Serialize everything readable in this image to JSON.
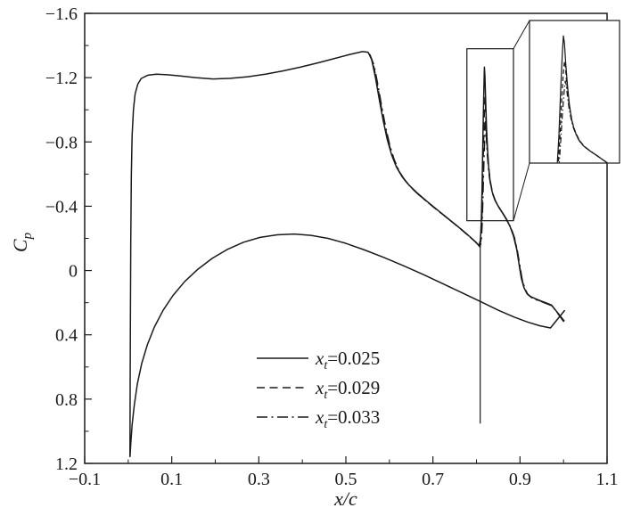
{
  "figure": {
    "background": "#ffffff",
    "ink": "#1a1a1a"
  },
  "chart_data": {
    "type": "line",
    "title": "",
    "xlabel": "x/c",
    "ylabel": "Cp",
    "ylabel_parts": {
      "base": "C",
      "sub": "p"
    },
    "axes": {
      "xlim": [
        -0.1,
        1.1
      ],
      "ylim_top": -1.6,
      "ylim_bottom": 1.2,
      "y_axis_inverted": true,
      "grid": false,
      "xticks": [
        -0.1,
        0.1,
        0.3,
        0.5,
        0.7,
        0.9,
        1.1
      ],
      "yticks": [
        -1.6,
        -1.2,
        -0.8,
        -0.4,
        0,
        0.4,
        0.8,
        1.2
      ],
      "x_minor_ticks": [
        0,
        0.2,
        0.4,
        0.6,
        0.8,
        1
      ],
      "y_minor_ticks": [
        -1.4,
        -1,
        -0.6,
        -0.2,
        0.2,
        0.6,
        1
      ]
    },
    "legend": {
      "position": "lower-center",
      "entries": [
        {
          "style": "solid",
          "var": "x",
          "sub": "t",
          "value": "=0.025"
        },
        {
          "style": "dashed",
          "var": "x",
          "sub": "t",
          "value": "=0.029"
        },
        {
          "style": "dashdot",
          "var": "x",
          "sub": "t",
          "value": "=0.033"
        }
      ]
    },
    "series": [
      {
        "name": "x_t=0.025",
        "style": "solid",
        "points": [
          [
            0.004,
            1.16
          ],
          [
            0.0045,
            0.72
          ],
          [
            0.005,
            0.3
          ],
          [
            0.0058,
            -0.18
          ],
          [
            0.007,
            -0.58
          ],
          [
            0.009,
            -0.84
          ],
          [
            0.012,
            -1.0
          ],
          [
            0.016,
            -1.1
          ],
          [
            0.022,
            -1.16
          ],
          [
            0.03,
            -1.195
          ],
          [
            0.045,
            -1.215
          ],
          [
            0.065,
            -1.222
          ],
          [
            0.09,
            -1.218
          ],
          [
            0.12,
            -1.21
          ],
          [
            0.155,
            -1.2
          ],
          [
            0.195,
            -1.192
          ],
          [
            0.235,
            -1.196
          ],
          [
            0.275,
            -1.206
          ],
          [
            0.315,
            -1.222
          ],
          [
            0.355,
            -1.242
          ],
          [
            0.395,
            -1.265
          ],
          [
            0.435,
            -1.292
          ],
          [
            0.475,
            -1.32
          ],
          [
            0.51,
            -1.345
          ],
          [
            0.538,
            -1.362
          ],
          [
            0.551,
            -1.358
          ],
          [
            0.559,
            -1.315
          ],
          [
            0.568,
            -1.2
          ],
          [
            0.577,
            -1.06
          ],
          [
            0.586,
            -0.93
          ],
          [
            0.595,
            -0.815
          ],
          [
            0.605,
            -0.72
          ],
          [
            0.616,
            -0.645
          ],
          [
            0.629,
            -0.585
          ],
          [
            0.644,
            -0.535
          ],
          [
            0.662,
            -0.487
          ],
          [
            0.684,
            -0.435
          ],
          [
            0.708,
            -0.382
          ],
          [
            0.733,
            -0.327
          ],
          [
            0.758,
            -0.272
          ],
          [
            0.78,
            -0.222
          ],
          [
            0.795,
            -0.185
          ],
          [
            0.806,
            -0.155
          ],
          [
            0.809,
            -0.19
          ],
          [
            0.811,
            -0.3
          ],
          [
            0.813,
            -0.52
          ],
          [
            0.815,
            -0.85
          ],
          [
            0.817,
            -1.13
          ],
          [
            0.8183,
            -1.265
          ],
          [
            0.8195,
            -1.21
          ],
          [
            0.821,
            -1.06
          ],
          [
            0.8232,
            -0.885
          ],
          [
            0.8255,
            -0.745
          ],
          [
            0.828,
            -0.64
          ],
          [
            0.8312,
            -0.56
          ],
          [
            0.836,
            -0.49
          ],
          [
            0.842,
            -0.44
          ],
          [
            0.85,
            -0.4
          ],
          [
            0.859,
            -0.362
          ],
          [
            0.868,
            -0.322
          ],
          [
            0.877,
            -0.275
          ],
          [
            0.885,
            -0.215
          ],
          [
            0.8925,
            -0.13
          ],
          [
            0.898,
            -0.035
          ],
          [
            0.903,
            0.048
          ],
          [
            0.909,
            0.105
          ],
          [
            0.916,
            0.143
          ],
          [
            0.925,
            0.163
          ],
          [
            0.936,
            0.176
          ],
          [
            0.948,
            0.189
          ],
          [
            0.96,
            0.201
          ],
          [
            0.972,
            0.214
          ],
          [
            1.002,
            0.315
          ]
        ]
      },
      {
        "name": "x_t=0.029",
        "style": "dashed",
        "points": [
          [
            0.553,
            -1.35
          ],
          [
            0.562,
            -1.295
          ],
          [
            0.571,
            -1.175
          ],
          [
            0.58,
            -1.035
          ],
          [
            0.589,
            -0.905
          ],
          [
            0.598,
            -0.795
          ],
          [
            0.608,
            -0.705
          ],
          [
            0.619,
            -0.632
          ],
          [
            0.632,
            -0.574
          ],
          [
            0.647,
            -0.525
          ],
          [
            0.665,
            -0.478
          ],
          [
            0.687,
            -0.427
          ],
          [
            0.711,
            -0.374
          ],
          [
            0.736,
            -0.32
          ],
          [
            0.761,
            -0.265
          ],
          [
            0.782,
            -0.216
          ],
          [
            0.797,
            -0.18
          ],
          [
            0.807,
            -0.15
          ],
          [
            0.81,
            -0.185
          ],
          [
            0.812,
            -0.29
          ],
          [
            0.814,
            -0.49
          ],
          [
            0.816,
            -0.76
          ],
          [
            0.818,
            -0.975
          ],
          [
            0.8195,
            -1.075
          ],
          [
            0.8207,
            -1.035
          ],
          [
            0.822,
            -0.93
          ],
          [
            0.824,
            -0.8
          ],
          [
            0.8265,
            -0.695
          ],
          [
            0.829,
            -0.615
          ],
          [
            0.8322,
            -0.548
          ],
          [
            0.837,
            -0.483
          ],
          [
            0.843,
            -0.436
          ],
          [
            0.851,
            -0.396
          ],
          [
            0.86,
            -0.358
          ],
          [
            0.869,
            -0.318
          ],
          [
            0.878,
            -0.271
          ],
          [
            0.886,
            -0.211
          ],
          [
            0.8935,
            -0.126
          ],
          [
            0.899,
            -0.031
          ],
          [
            0.904,
            0.052
          ],
          [
            0.91,
            0.108
          ],
          [
            0.917,
            0.146
          ],
          [
            0.926,
            0.166
          ],
          [
            0.937,
            0.179
          ],
          [
            0.949,
            0.192
          ],
          [
            0.961,
            0.204
          ],
          [
            0.973,
            0.217
          ],
          [
            1.002,
            0.318
          ]
        ]
      },
      {
        "name": "x_t=0.033",
        "style": "dashdot",
        "points": [
          [
            0.555,
            -1.345
          ],
          [
            0.565,
            -1.275
          ],
          [
            0.574,
            -1.15
          ],
          [
            0.583,
            -1.01
          ],
          [
            0.592,
            -0.885
          ],
          [
            0.601,
            -0.778
          ],
          [
            0.611,
            -0.69
          ],
          [
            0.622,
            -0.62
          ],
          [
            0.635,
            -0.564
          ],
          [
            0.65,
            -0.516
          ],
          [
            0.668,
            -0.47
          ],
          [
            0.69,
            -0.42
          ],
          [
            0.714,
            -0.367
          ],
          [
            0.739,
            -0.313
          ],
          [
            0.764,
            -0.259
          ],
          [
            0.784,
            -0.211
          ],
          [
            0.799,
            -0.176
          ],
          [
            0.808,
            -0.147
          ],
          [
            0.811,
            -0.18
          ],
          [
            0.813,
            -0.28
          ],
          [
            0.815,
            -0.46
          ],
          [
            0.817,
            -0.67
          ],
          [
            0.819,
            -0.835
          ],
          [
            0.8205,
            -0.925
          ],
          [
            0.8218,
            -0.895
          ],
          [
            0.823,
            -0.815
          ],
          [
            0.825,
            -0.72
          ],
          [
            0.8275,
            -0.64
          ],
          [
            0.83,
            -0.578
          ],
          [
            0.8332,
            -0.525
          ],
          [
            0.838,
            -0.47
          ],
          [
            0.844,
            -0.43
          ],
          [
            0.852,
            -0.392
          ],
          [
            0.861,
            -0.354
          ],
          [
            0.87,
            -0.314
          ],
          [
            0.879,
            -0.267
          ],
          [
            0.887,
            -0.207
          ],
          [
            0.894,
            -0.122
          ],
          [
            0.9,
            -0.027
          ],
          [
            0.905,
            0.056
          ],
          [
            0.911,
            0.111
          ],
          [
            0.918,
            0.149
          ],
          [
            0.927,
            0.169
          ],
          [
            0.938,
            0.182
          ],
          [
            0.95,
            0.195
          ],
          [
            0.962,
            0.207
          ],
          [
            0.974,
            0.22
          ],
          [
            1.001,
            0.32
          ]
        ]
      }
    ],
    "extra_curves": {
      "lower_surface": {
        "style": "solid",
        "points": [
          [
            0.004,
            1.16
          ],
          [
            0.006,
            1.07
          ],
          [
            0.009,
            0.96
          ],
          [
            0.014,
            0.835
          ],
          [
            0.021,
            0.705
          ],
          [
            0.031,
            0.578
          ],
          [
            0.044,
            0.462
          ],
          [
            0.06,
            0.352
          ],
          [
            0.08,
            0.248
          ],
          [
            0.103,
            0.155
          ],
          [
            0.13,
            0.068
          ],
          [
            0.16,
            -0.008
          ],
          [
            0.193,
            -0.076
          ],
          [
            0.228,
            -0.132
          ],
          [
            0.265,
            -0.176
          ],
          [
            0.303,
            -0.206
          ],
          [
            0.342,
            -0.222
          ],
          [
            0.381,
            -0.227
          ],
          [
            0.42,
            -0.219
          ],
          [
            0.459,
            -0.2
          ],
          [
            0.499,
            -0.17
          ],
          [
            0.543,
            -0.128
          ],
          [
            0.588,
            -0.08
          ],
          [
            0.633,
            -0.029
          ],
          [
            0.678,
            0.025
          ],
          [
            0.723,
            0.082
          ],
          [
            0.768,
            0.14
          ],
          [
            0.81,
            0.194
          ],
          [
            0.85,
            0.247
          ],
          [
            0.886,
            0.289
          ],
          [
            0.917,
            0.32
          ],
          [
            0.946,
            0.344
          ],
          [
            0.97,
            0.357
          ],
          [
            1.003,
            0.247
          ]
        ]
      },
      "flap_stagnation_line": {
        "style": "solid",
        "points": [
          [
            0.8085,
            -0.155
          ],
          [
            0.8085,
            0.952
          ]
        ]
      }
    },
    "zoom": {
      "source_rect": {
        "x": [
          0.778,
          0.885
        ],
        "cp": [
          -1.38,
          -0.31
        ]
      }
    }
  }
}
